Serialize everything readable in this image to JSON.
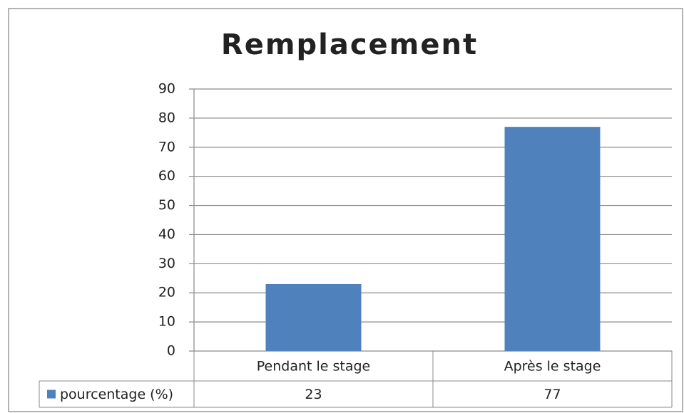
{
  "chart_data": {
    "type": "bar",
    "title": "Remplacement",
    "categories": [
      "Pendant le stage",
      "Après le stage"
    ],
    "series": [
      {
        "name": "pourcentage (%)",
        "color": "#4f81bd",
        "values": [
          23,
          77
        ]
      }
    ],
    "ylim": [
      0,
      90
    ],
    "yticks": [
      0,
      10,
      20,
      30,
      40,
      50,
      60,
      70,
      80,
      90
    ],
    "grid": true
  }
}
